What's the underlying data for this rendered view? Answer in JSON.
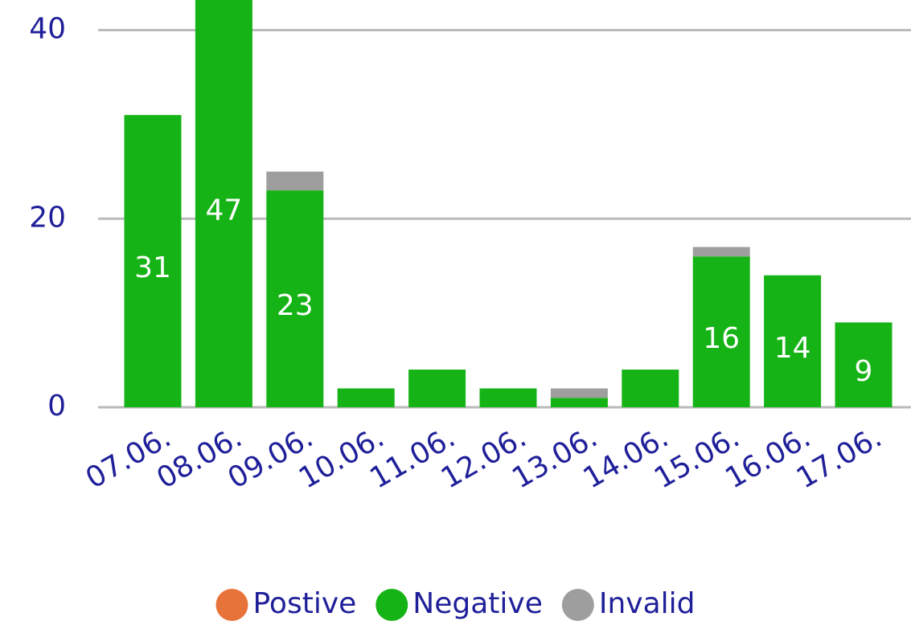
{
  "chart_data": {
    "type": "stacked_bar",
    "categories": [
      "07.06.",
      "08.06.",
      "09.06.",
      "10.06.",
      "11.06.",
      "12.06.",
      "13.06.",
      "14.06.",
      "15.06.",
      "16.06.",
      "17.06."
    ],
    "series": [
      {
        "name": "Postive",
        "color": "#e8733a",
        "values": [
          0,
          0,
          0,
          0,
          0,
          0,
          0,
          0,
          0,
          0,
          0
        ]
      },
      {
        "name": "Negative",
        "color": "#16b316",
        "values": [
          31,
          47,
          23,
          2,
          4,
          2,
          1,
          4,
          16,
          14,
          9
        ]
      },
      {
        "name": "Invalid",
        "color": "#9e9e9e",
        "values": [
          0,
          0,
          2,
          0,
          0,
          0,
          1,
          0,
          1,
          0,
          0
        ]
      }
    ],
    "ylim": [
      0,
      43.2
    ],
    "yticks": [
      0,
      20,
      40
    ],
    "grid": true,
    "legend": "bottom"
  }
}
